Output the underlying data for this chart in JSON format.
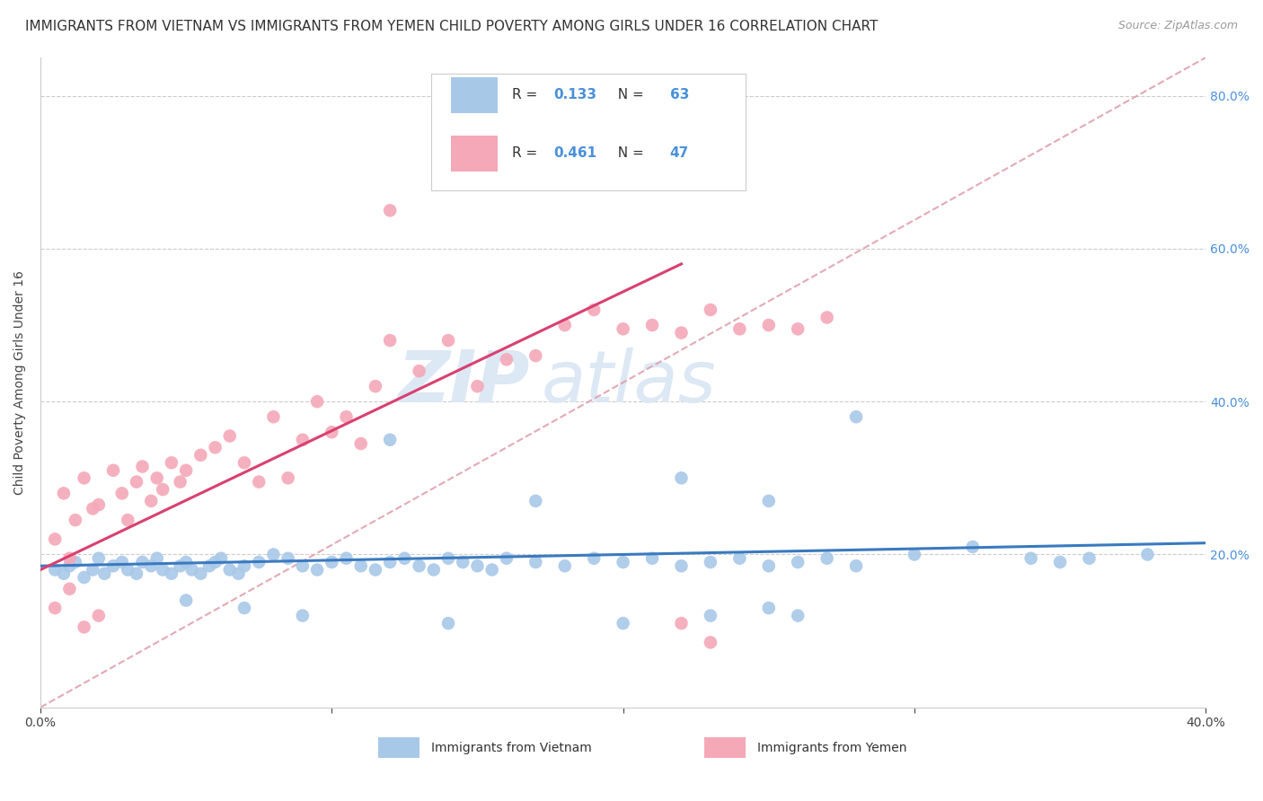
{
  "title": "IMMIGRANTS FROM VIETNAM VS IMMIGRANTS FROM YEMEN CHILD POVERTY AMONG GIRLS UNDER 16 CORRELATION CHART",
  "source": "Source: ZipAtlas.com",
  "ylabel": "Child Poverty Among Girls Under 16",
  "xlim": [
    0.0,
    0.4
  ],
  "ylim": [
    0.0,
    0.85
  ],
  "x_ticks": [
    0.0,
    0.1,
    0.2,
    0.3,
    0.4
  ],
  "x_tick_labels": [
    "0.0%",
    "",
    "",
    "",
    "40.0%"
  ],
  "y_tick_labels": [
    "20.0%",
    "40.0%",
    "60.0%",
    "80.0%"
  ],
  "y_ticks": [
    0.2,
    0.4,
    0.6,
    0.8
  ],
  "r_vietnam": 0.133,
  "n_vietnam": 63,
  "r_yemen": 0.461,
  "n_yemen": 47,
  "color_vietnam": "#a8c8e8",
  "color_yemen": "#f4a8b8",
  "line_color_vietnam": "#3a7abf",
  "line_color_yemen": "#d94070",
  "line_color_dashed": "#e0a0b0",
  "background_color": "#ffffff",
  "watermark_zip": "ZIP",
  "watermark_atlas": "atlas",
  "title_fontsize": 11,
  "axis_label_fontsize": 10,
  "tick_fontsize": 10,
  "legend_fontsize": 11,
  "vietnam_x": [
    0.005,
    0.008,
    0.01,
    0.012,
    0.015,
    0.018,
    0.02,
    0.022,
    0.025,
    0.028,
    0.03,
    0.033,
    0.035,
    0.038,
    0.04,
    0.042,
    0.045,
    0.048,
    0.05,
    0.052,
    0.055,
    0.058,
    0.06,
    0.062,
    0.065,
    0.068,
    0.07,
    0.075,
    0.08,
    0.085,
    0.09,
    0.095,
    0.1,
    0.105,
    0.11,
    0.115,
    0.12,
    0.125,
    0.13,
    0.135,
    0.14,
    0.145,
    0.15,
    0.155,
    0.16,
    0.17,
    0.18,
    0.19,
    0.2,
    0.21,
    0.22,
    0.23,
    0.24,
    0.25,
    0.26,
    0.27,
    0.28,
    0.3,
    0.32,
    0.34,
    0.35,
    0.36,
    0.38
  ],
  "vietnam_y": [
    0.18,
    0.175,
    0.185,
    0.19,
    0.17,
    0.18,
    0.195,
    0.175,
    0.185,
    0.19,
    0.18,
    0.175,
    0.19,
    0.185,
    0.195,
    0.18,
    0.175,
    0.185,
    0.19,
    0.18,
    0.175,
    0.185,
    0.19,
    0.195,
    0.18,
    0.175,
    0.185,
    0.19,
    0.2,
    0.195,
    0.185,
    0.18,
    0.19,
    0.195,
    0.185,
    0.18,
    0.19,
    0.195,
    0.185,
    0.18,
    0.195,
    0.19,
    0.185,
    0.18,
    0.195,
    0.19,
    0.185,
    0.195,
    0.19,
    0.195,
    0.185,
    0.19,
    0.195,
    0.185,
    0.19,
    0.195,
    0.185,
    0.2,
    0.21,
    0.195,
    0.19,
    0.195,
    0.2
  ],
  "vietnam_y_outliers": [
    [
      0.12,
      0.35
    ],
    [
      0.22,
      0.3
    ],
    [
      0.28,
      0.38
    ],
    [
      0.17,
      0.27
    ],
    [
      0.25,
      0.27
    ]
  ],
  "vietnam_y_low": [
    [
      0.05,
      0.14
    ],
    [
      0.07,
      0.13
    ],
    [
      0.09,
      0.12
    ],
    [
      0.14,
      0.11
    ],
    [
      0.2,
      0.11
    ],
    [
      0.23,
      0.12
    ],
    [
      0.25,
      0.13
    ],
    [
      0.26,
      0.12
    ]
  ],
  "yemen_x": [
    0.005,
    0.008,
    0.01,
    0.012,
    0.015,
    0.018,
    0.02,
    0.025,
    0.028,
    0.03,
    0.033,
    0.035,
    0.038,
    0.04,
    0.042,
    0.045,
    0.048,
    0.05,
    0.055,
    0.06,
    0.065,
    0.07,
    0.075,
    0.08,
    0.085,
    0.09,
    0.095,
    0.1,
    0.105,
    0.11,
    0.115,
    0.12,
    0.13,
    0.14,
    0.15,
    0.16,
    0.17,
    0.18,
    0.19,
    0.2,
    0.21,
    0.22,
    0.23,
    0.24,
    0.25,
    0.26,
    0.27
  ],
  "yemen_y": [
    0.22,
    0.28,
    0.195,
    0.245,
    0.3,
    0.26,
    0.265,
    0.31,
    0.28,
    0.245,
    0.295,
    0.315,
    0.27,
    0.3,
    0.285,
    0.32,
    0.295,
    0.31,
    0.33,
    0.34,
    0.355,
    0.32,
    0.295,
    0.38,
    0.3,
    0.35,
    0.4,
    0.36,
    0.38,
    0.345,
    0.42,
    0.48,
    0.44,
    0.48,
    0.42,
    0.455,
    0.46,
    0.5,
    0.52,
    0.495,
    0.5,
    0.49,
    0.52,
    0.495,
    0.5,
    0.495,
    0.51
  ],
  "yemen_outlier_high": [
    [
      0.12,
      0.65
    ]
  ],
  "yemen_low": [
    [
      0.005,
      0.13
    ],
    [
      0.01,
      0.155
    ],
    [
      0.015,
      0.105
    ],
    [
      0.02,
      0.12
    ],
    [
      0.22,
      0.11
    ],
    [
      0.23,
      0.085
    ]
  ],
  "viet_line_x": [
    0.0,
    0.4
  ],
  "viet_line_y": [
    0.185,
    0.215
  ],
  "yem_line_x": [
    0.0,
    0.22
  ],
  "yem_line_y": [
    0.18,
    0.58
  ],
  "dash_line_x": [
    0.0,
    0.4
  ],
  "dash_line_y": [
    0.0,
    0.85
  ]
}
